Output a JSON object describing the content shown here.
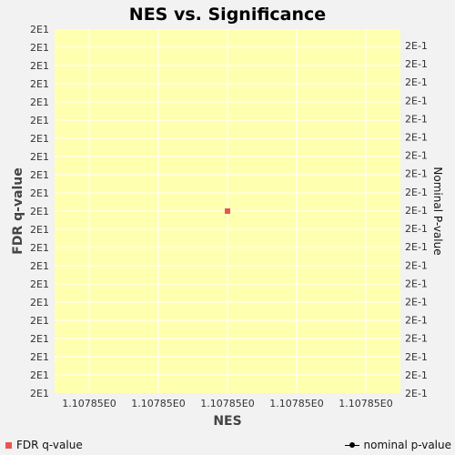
{
  "colors": {
    "page_bg": "#f2f2f2",
    "plot_bg": "#ffffb0",
    "grid": "#ffffff",
    "fdr_marker": "#e85555",
    "nominal_marker": "#000000"
  },
  "legend": {
    "fdr_label": "FDR q-value",
    "nominal_label": "nominal p-value"
  },
  "chart_data": {
    "type": "scatter",
    "title": "NES vs. Significance",
    "xlabel": "NES",
    "ylabel": "FDR q-value",
    "y2label": "Nominal P-value",
    "x_tick_labels": [
      "1.10785E0",
      "1.10785E0",
      "1.10785E0",
      "1.10785E0",
      "1.10785E0"
    ],
    "y_tick_labels": [
      "2E1",
      "2E1",
      "2E1",
      "2E1",
      "2E1",
      "2E1",
      "2E1",
      "2E1",
      "2E1",
      "2E1",
      "2E1",
      "2E1",
      "2E1",
      "2E1",
      "2E1",
      "2E1",
      "2E1",
      "2E1",
      "2E1",
      "2E1",
      "2E1"
    ],
    "y2_tick_labels": [
      "2E-1",
      "2E-1",
      "2E-1",
      "2E-1",
      "2E-1",
      "2E-1",
      "2E-1",
      "2E-1",
      "2E-1",
      "2E-1",
      "2E-1",
      "2E-1",
      "2E-1",
      "2E-1",
      "2E-1",
      "2E-1",
      "2E-1",
      "2E-1",
      "2E-1",
      "2E-1"
    ],
    "grid": true,
    "legend_placement": "bottom",
    "series": [
      {
        "name": "FDR q-value",
        "x": [
          1.10785
        ],
        "y": [
          20
        ],
        "marker": "square"
      },
      {
        "name": "nominal p-value",
        "x": [
          1.10785
        ],
        "y": [
          0.2
        ],
        "marker": "circle-line"
      }
    ]
  }
}
